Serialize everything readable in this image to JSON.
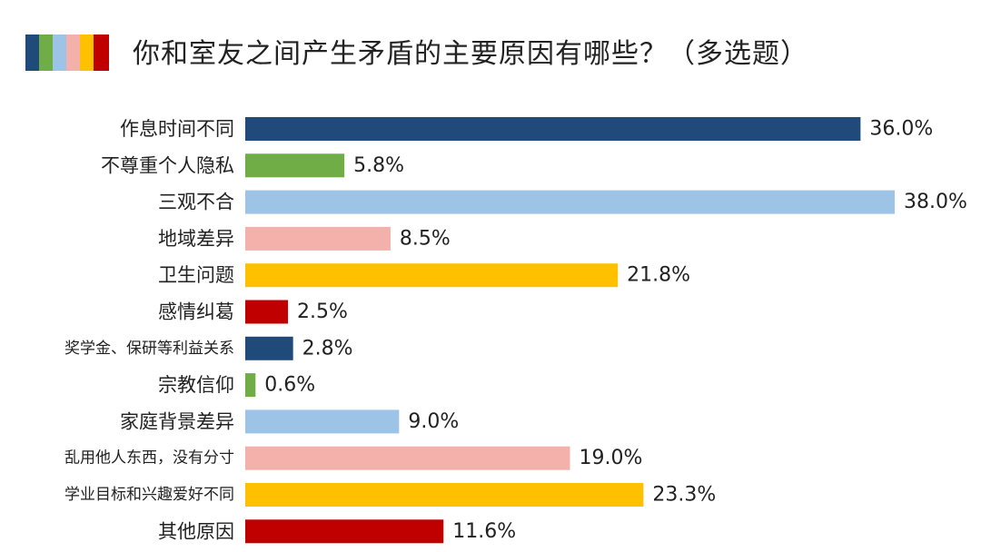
{
  "title": "你和室友之间产生矛盾的主要原因有哪些？（多选题）",
  "palette": [
    "#1f4a7a",
    "#70ad47",
    "#9dc3e6",
    "#f4b0aa",
    "#ffc000",
    "#c00000"
  ],
  "chart_data": {
    "type": "bar",
    "orientation": "horizontal",
    "title": "你和室友之间产生矛盾的主要原因有哪些？（多选题）",
    "xlabel": "",
    "ylabel": "",
    "unit": "%",
    "xlim": [
      0,
      38
    ],
    "grid": false,
    "legend": "none",
    "categories": [
      "作息时间不同",
      "不尊重个人隐私",
      "三观不合",
      "地域差异",
      "卫生问题",
      "感情纠葛",
      "奖学金、保研等利益关系",
      "宗教信仰",
      "家庭背景差异",
      "乱用他人东西，没有分寸",
      "学业目标和兴趣爱好不同",
      "其他原因"
    ],
    "values": [
      36.0,
      5.8,
      38.0,
      8.5,
      21.8,
      2.5,
      2.8,
      0.6,
      9.0,
      19.0,
      23.3,
      11.6
    ],
    "value_labels": [
      "36.0%",
      "5.8%",
      "38.0%",
      "8.5%",
      "21.8%",
      "2.5%",
      "2.8%",
      "0.6%",
      "9.0%",
      "19.0%",
      "23.3%",
      "11.6%"
    ],
    "colors": [
      "#1f4a7a",
      "#70ad47",
      "#9dc3e6",
      "#f4b0aa",
      "#ffc000",
      "#c00000",
      "#1f4a7a",
      "#70ad47",
      "#9dc3e6",
      "#f4b0aa",
      "#ffc000",
      "#c00000"
    ]
  }
}
